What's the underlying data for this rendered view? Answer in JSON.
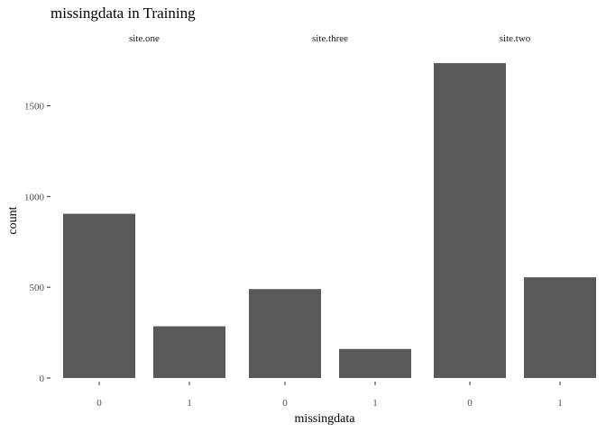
{
  "chart_data": {
    "type": "bar",
    "title": "missingdata in Training",
    "xlabel": "missingdata",
    "ylabel": "count",
    "facet_variable": "site",
    "facets": [
      {
        "name": "site.one",
        "categories": [
          "0",
          "1"
        ],
        "values": [
          905,
          285
        ]
      },
      {
        "name": "site.three",
        "categories": [
          "0",
          "1"
        ],
        "values": [
          490,
          160
        ]
      },
      {
        "name": "site.two",
        "categories": [
          "0",
          "1"
        ],
        "values": [
          1735,
          555
        ]
      }
    ],
    "y_ticks": [
      0,
      500,
      1000,
      1500
    ],
    "y_tick_labels": [
      "0",
      "500",
      "1000",
      "1500"
    ],
    "ylim": [
      0,
      1820
    ],
    "grid": false,
    "legend": "none",
    "bar_color": "#595959"
  }
}
